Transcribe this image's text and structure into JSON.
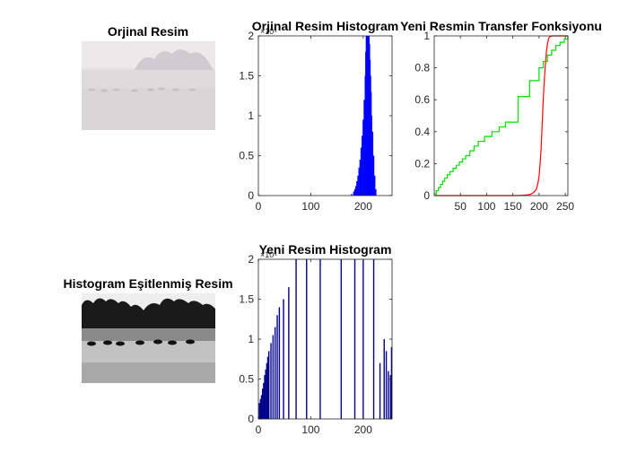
{
  "window": {
    "figure_background": "#ffffff"
  },
  "photo_original": {
    "title": "Orjinal Resim",
    "note_colors": {
      "sky": "#ebe8ea",
      "fog": "#dcd9db",
      "water": "#d8d5d7",
      "trees": "#c9c6c8"
    }
  },
  "photo_equalized": {
    "title": "Histogram Eşitlenmiş Resim",
    "note_colors": {
      "sky": "#f2f2f2",
      "trees": "#1e1e1e",
      "water": "#bdbdbd",
      "birds": "#101010"
    }
  },
  "chart_data": [
    {
      "type": "bar",
      "title": "Orjinal Resim Histogram",
      "xlim": [
        0,
        255
      ],
      "ylim": [
        0,
        2
      ],
      "y_exponent_label": "×10⁴",
      "xticks": [
        0,
        100,
        200
      ],
      "yticks": [
        0,
        0.5,
        1,
        1.5,
        2
      ],
      "xtick_labels": [
        "0",
        "100",
        "200"
      ],
      "ytick_labels": [
        "0",
        "0.5",
        "1",
        "1.5",
        "2"
      ],
      "color": "#0000ff",
      "bins": [
        178,
        182,
        184,
        186,
        188,
        190,
        192,
        194,
        196,
        198,
        200,
        202,
        204,
        205,
        206,
        207,
        208,
        209,
        210,
        211,
        212,
        213,
        214,
        215,
        216,
        218,
        220,
        222,
        224
      ],
      "values": [
        0.02,
        0.05,
        0.08,
        0.12,
        0.18,
        0.25,
        0.35,
        0.45,
        0.6,
        0.75,
        0.95,
        1.2,
        1.5,
        1.8,
        2.0,
        2.0,
        2.0,
        2.0,
        2.0,
        2.0,
        1.9,
        1.7,
        1.5,
        1.3,
        1.0,
        0.8,
        0.5,
        0.25,
        0.08
      ]
    },
    {
      "type": "line",
      "title": "Yeni Resmin Transfer Fonksiyonu",
      "xlim": [
        0,
        255
      ],
      "ylim": [
        0,
        1
      ],
      "xticks": [
        50,
        100,
        150,
        200,
        250
      ],
      "yticks": [
        0,
        0.2,
        0.4,
        0.6,
        0.8,
        1
      ],
      "xtick_labels": [
        "50",
        "100",
        "150",
        "200",
        "250"
      ],
      "ytick_labels": [
        "0",
        "0.2",
        "0.4",
        "0.6",
        "0.8",
        "1"
      ],
      "series": [
        {
          "color": "#ff0000",
          "x": [
            0,
            160,
            170,
            180,
            185,
            190,
            195,
            198,
            200,
            202,
            204,
            206,
            208,
            210,
            212,
            214,
            216,
            218,
            220,
            225,
            230,
            255
          ],
          "y": [
            0,
            0,
            0.002,
            0.005,
            0.01,
            0.02,
            0.04,
            0.08,
            0.12,
            0.2,
            0.3,
            0.45,
            0.6,
            0.72,
            0.82,
            0.9,
            0.95,
            0.98,
            0.995,
            1,
            1,
            1
          ]
        },
        {
          "color": "#00e000",
          "step": true,
          "x": [
            0,
            4,
            8,
            12,
            16,
            20,
            25,
            30,
            36,
            42,
            48,
            54,
            60,
            68,
            76,
            84,
            96,
            110,
            124,
            136,
            160,
            182,
            200,
            208,
            216,
            224,
            232,
            240,
            248,
            255
          ],
          "y": [
            0.01,
            0.03,
            0.05,
            0.07,
            0.09,
            0.11,
            0.13,
            0.15,
            0.17,
            0.19,
            0.21,
            0.23,
            0.25,
            0.28,
            0.31,
            0.34,
            0.37,
            0.4,
            0.43,
            0.46,
            0.62,
            0.72,
            0.8,
            0.84,
            0.88,
            0.91,
            0.94,
            0.96,
            0.98,
            1.0
          ]
        }
      ]
    },
    {
      "type": "bar",
      "title": "Yeni Resim Histogram",
      "xlim": [
        0,
        255
      ],
      "ylim": [
        0,
        2
      ],
      "y_exponent_label": "×10⁴",
      "xticks": [
        0,
        100,
        200
      ],
      "yticks": [
        0,
        0.5,
        1,
        1.5,
        2
      ],
      "xtick_labels": [
        "0",
        "100",
        "200"
      ],
      "ytick_labels": [
        "0",
        "0.5",
        "1",
        "1.5",
        "2"
      ],
      "color": "#00008b",
      "bins": [
        2,
        4,
        6,
        8,
        10,
        12,
        14,
        16,
        18,
        20,
        24,
        28,
        32,
        36,
        40,
        48,
        58,
        72,
        92,
        118,
        158,
        184,
        200,
        220,
        232,
        240,
        244,
        248,
        252,
        254
      ],
      "values": [
        0.2,
        0.25,
        0.3,
        0.38,
        0.45,
        0.55,
        0.62,
        0.7,
        0.78,
        0.85,
        0.95,
        1.05,
        1.15,
        1.3,
        1.4,
        1.5,
        1.65,
        2.0,
        2.0,
        2.0,
        2.0,
        2.0,
        2.0,
        2.0,
        0.7,
        1.0,
        0.85,
        0.6,
        0.55,
        0.9
      ]
    }
  ]
}
